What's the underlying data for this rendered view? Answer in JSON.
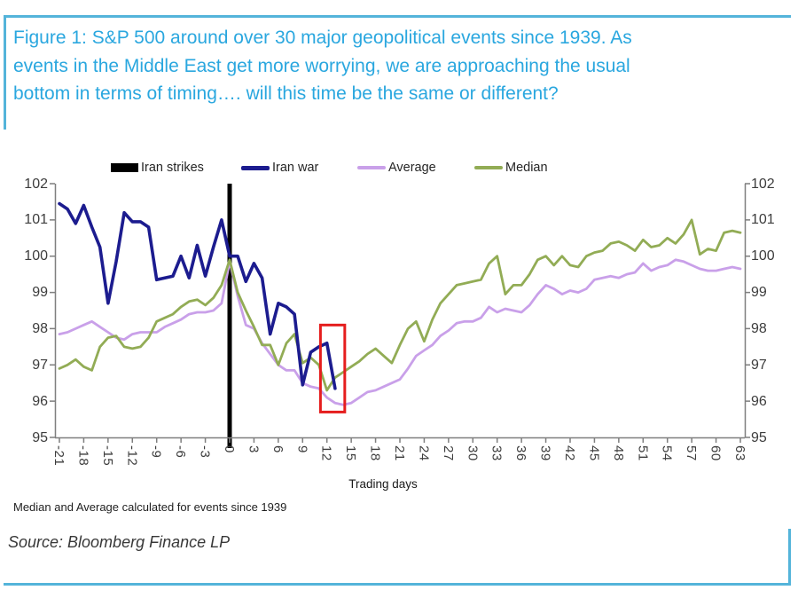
{
  "title": {
    "lines": [
      "Figure 1: S&P 500 around over 30 major geopolitical events since 1939. As",
      "events in the Middle East get more worrying, we are approaching the usual",
      "bottom in terms of timing…. will this time be the same or different?"
    ]
  },
  "colors": {
    "accent_frame": "#54b4da",
    "title_text": "#2aa7df",
    "iran_strikes_bar": "#000000",
    "iran_war_line": "#1c1c8f",
    "average_line": "#c9a0e9",
    "median_line": "#92ac55",
    "highlight_box": "#e51d1d",
    "axis": "#7f7f7f"
  },
  "legend": [
    {
      "label": "Iran strikes",
      "swatch": "bar",
      "color": "#000000"
    },
    {
      "label": "Iran war",
      "swatch": "line",
      "color": "#1c1c8f"
    },
    {
      "label": "Average",
      "swatch": "line",
      "color": "#c9a0e9"
    },
    {
      "label": "Median",
      "swatch": "line",
      "color": "#92ac55"
    }
  ],
  "chart_data": {
    "type": "line",
    "xlabel": "Trading days",
    "xlim": [
      -21,
      63
    ],
    "ylim": [
      95,
      102
    ],
    "x_ticks": [
      -21,
      -18,
      -15,
      -12,
      -9,
      -6,
      -3,
      0,
      3,
      6,
      9,
      12,
      15,
      18,
      21,
      24,
      27,
      30,
      33,
      36,
      39,
      42,
      45,
      48,
      51,
      54,
      57,
      60,
      63
    ],
    "y_ticks": [
      95,
      96,
      97,
      98,
      99,
      100,
      101,
      102
    ],
    "grid": false,
    "legend_position": "top",
    "series": [
      {
        "name": "Iran war",
        "color": "#1c1c8f",
        "width": 3.6,
        "x_start": -21,
        "values": [
          101.45,
          101.3,
          100.9,
          101.4,
          100.8,
          100.25,
          98.7,
          99.85,
          101.2,
          100.95,
          100.95,
          100.8,
          99.35,
          99.4,
          99.45,
          100.0,
          99.4,
          100.3,
          99.45,
          100.25,
          101.0,
          100.0,
          100.0,
          99.3,
          99.8,
          99.4,
          97.85,
          98.7,
          98.6,
          98.4,
          96.45,
          97.35,
          97.5,
          97.6,
          96.35
        ]
      },
      {
        "name": "Average",
        "color": "#c9a0e9",
        "width": 2.8,
        "x_start": -21,
        "values": [
          97.85,
          97.9,
          98.0,
          98.1,
          98.2,
          98.05,
          97.9,
          97.75,
          97.7,
          97.85,
          97.9,
          97.9,
          97.9,
          98.05,
          98.15,
          98.25,
          98.4,
          98.45,
          98.45,
          98.5,
          98.7,
          99.85,
          98.9,
          98.1,
          98.0,
          97.6,
          97.3,
          97.0,
          96.85,
          96.85,
          96.5,
          96.4,
          96.35,
          96.1,
          95.95,
          95.9,
          95.95,
          96.1,
          96.25,
          96.3,
          96.4,
          96.5,
          96.6,
          96.9,
          97.25,
          97.4,
          97.55,
          97.8,
          97.95,
          98.15,
          98.2,
          98.2,
          98.3,
          98.6,
          98.45,
          98.55,
          98.5,
          98.45,
          98.65,
          98.95,
          99.2,
          99.1,
          98.95,
          99.05,
          99.0,
          99.1,
          99.35,
          99.4,
          99.45,
          99.4,
          99.5,
          99.55,
          99.8,
          99.6,
          99.7,
          99.75,
          99.9,
          99.85,
          99.75,
          99.65,
          99.6,
          99.6,
          99.65,
          99.7,
          99.65
        ]
      },
      {
        "name": "Median",
        "color": "#92ac55",
        "width": 2.8,
        "x_start": -21,
        "values": [
          96.9,
          97.0,
          97.15,
          96.95,
          96.85,
          97.5,
          97.75,
          97.8,
          97.5,
          97.45,
          97.5,
          97.75,
          98.2,
          98.3,
          98.4,
          98.6,
          98.75,
          98.8,
          98.65,
          98.85,
          99.2,
          99.9,
          99.0,
          98.5,
          98.05,
          97.55,
          97.55,
          97.0,
          97.6,
          97.85,
          97.05,
          97.2,
          97.0,
          96.3,
          96.65,
          96.8,
          96.95,
          97.1,
          97.3,
          97.45,
          97.25,
          97.05,
          97.55,
          98.0,
          98.2,
          97.65,
          98.25,
          98.7,
          98.95,
          99.2,
          99.25,
          99.3,
          99.35,
          99.8,
          100.0,
          98.95,
          99.2,
          99.2,
          99.5,
          99.9,
          100.0,
          99.75,
          100.0,
          99.75,
          99.7,
          100.0,
          100.1,
          100.15,
          100.35,
          100.4,
          100.3,
          100.15,
          100.45,
          100.25,
          100.3,
          100.5,
          100.35,
          100.6,
          101.0,
          100.05,
          100.2,
          100.15,
          100.65,
          100.7,
          100.65
        ]
      }
    ],
    "annotations": {
      "event_bar": {
        "label": "Iran strikes",
        "day": 0,
        "color": "#000000"
      },
      "highlight_box": {
        "day_range": [
          11.2,
          14.2
        ],
        "value_range": [
          95.7,
          98.1
        ],
        "color": "#e51d1d"
      }
    }
  },
  "xaxis_title": "Trading days",
  "footnote": "Median and Average calculated for events since 1939",
  "source": "Source: Bloomberg Finance LP"
}
